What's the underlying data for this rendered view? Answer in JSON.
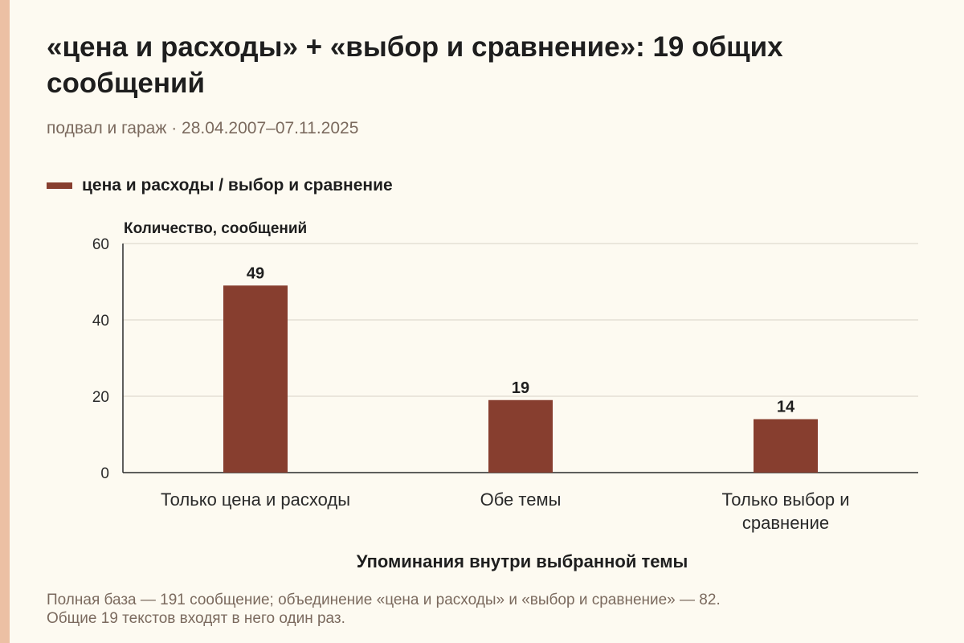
{
  "header": {
    "title": "«цена и расходы» + «выбор и сравнение»: 19 общих сообщений",
    "subtitle": "подвал и гараж · 28.04.2007–07.11.2025"
  },
  "footnote": {
    "line1": "Полная база — 191 сообщение; объединение «цена и расходы» и «выбор и сравнение» — 82.",
    "line2": "Общие 19 текстов входят в него один раз."
  },
  "colors": {
    "bar": "#873e2f",
    "background": "#fdfaf1",
    "accent": "#ecc0a4"
  },
  "chart_data": {
    "type": "bar",
    "categories": [
      [
        "Только цена и расходы"
      ],
      [
        "Обе темы"
      ],
      [
        "Только выбор и",
        "сравнение"
      ]
    ],
    "series": [
      {
        "name": "цена и расходы / выбор и сравнение",
        "values": [
          49,
          19,
          14
        ]
      }
    ],
    "data_labels": [
      "49",
      "19",
      "14"
    ],
    "ylabel": "Количество, сообщений",
    "xlabel": "Упоминания внутри выбранной темы",
    "ylim": [
      0,
      60
    ],
    "yticks": [
      0,
      20,
      40,
      60
    ],
    "ytick_labels": [
      "0",
      "20",
      "40",
      "60"
    ],
    "grid": true,
    "legend_position": "top-left"
  }
}
